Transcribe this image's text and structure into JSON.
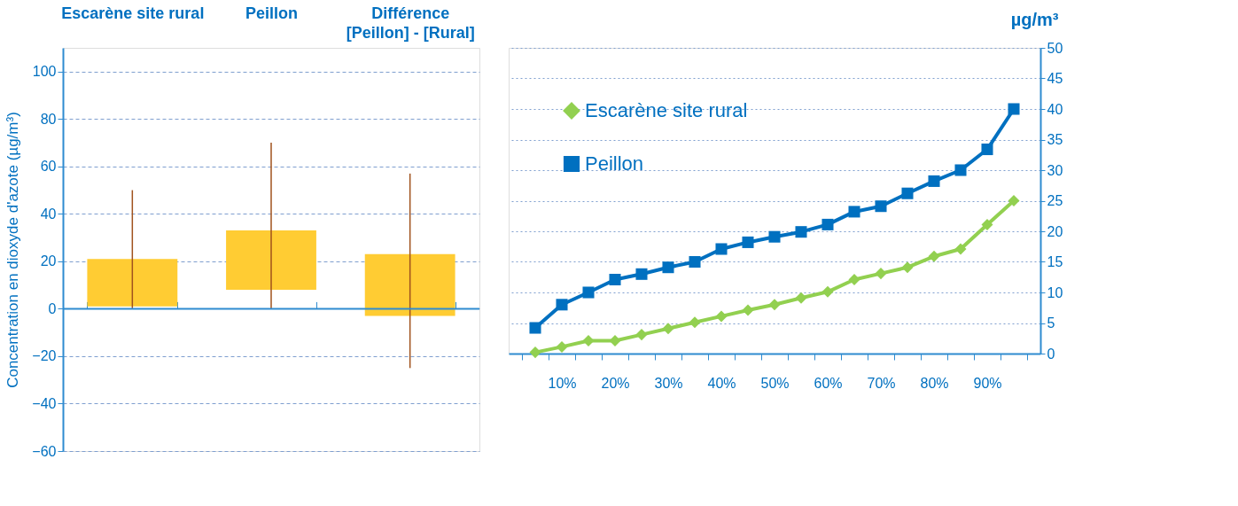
{
  "chart_data": [
    {
      "type": "bar",
      "categories": [
        "Escarène site rural",
        "Peillon",
        "Différence\n[Peillon] -  [Rural]"
      ],
      "base": [
        1,
        8,
        -3
      ],
      "values": [
        20,
        25,
        26
      ],
      "errors": [
        [
          0,
          50
        ],
        [
          0,
          70
        ],
        [
          -25,
          57
        ]
      ],
      "colors": [
        "#ffcc33",
        "#ffcc33",
        "#ffcc33"
      ],
      "ylabel": "Concentration en dioxyde d'azote (µg/m³)",
      "ylim": [
        -60,
        110
      ],
      "yticks": [
        -60,
        -40,
        -20,
        0,
        20,
        40,
        60,
        80,
        100
      ],
      "grid": "y",
      "ref_lines": [
        {
          "axis": "y",
          "value": 0,
          "color": "#2e8bd0"
        }
      ]
    },
    {
      "type": "line",
      "categories": [
        null,
        "10%",
        null,
        "20%",
        null,
        "30%",
        null,
        "40%",
        null,
        "50%",
        null,
        "60%",
        null,
        "70%",
        null,
        "80%",
        null,
        "90%",
        null
      ],
      "series": [
        {
          "name": "Escarène site rural",
          "color": "#92d050",
          "marker": "diamond",
          "axis": "y2",
          "values": [
            0.2,
            1.1,
            2.1,
            2.1,
            3.1,
            4.1,
            5.1,
            6.1,
            7.1,
            8,
            9.1,
            10.1,
            12.1,
            13.1,
            14.1,
            15.9,
            17.1,
            21.1,
            25
          ]
        },
        {
          "name": "Peillon",
          "color": "#0070c0",
          "marker": "square",
          "axis": "y2",
          "values": [
            4.2,
            8,
            10,
            12.1,
            13,
            14.1,
            15,
            17.1,
            18.2,
            19.1,
            19.9,
            21.1,
            23.2,
            24.1,
            26.2,
            28.2,
            30,
            33.4,
            40
          ]
        }
      ],
      "y2label": "µg/m³",
      "y2lim": [
        0,
        50
      ],
      "y2ticks": [
        0,
        5,
        10,
        15,
        20,
        25,
        30,
        35,
        40,
        45,
        50
      ],
      "grid": "y",
      "legend": "top left"
    }
  ]
}
